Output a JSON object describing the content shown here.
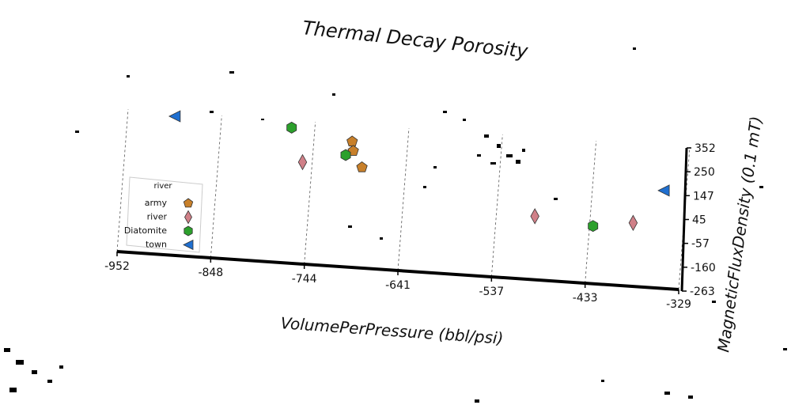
{
  "chart_data": {
    "type": "scatter",
    "title": "Thermal Decay Porosity",
    "xlabel": "VolumePerPressure (bbl/psi)",
    "ylabel": "MagneticFluxDensity (0.1 mT)",
    "xlim": [
      -952,
      -329
    ],
    "ylim": [
      -263,
      352
    ],
    "x_ticks": [
      "-952",
      "-848",
      "-744",
      "-641",
      "-537",
      "-433",
      "-329"
    ],
    "y_ticks": [
      "-263",
      "-160",
      "-57",
      "45",
      "147",
      "250",
      "352"
    ],
    "grid": true,
    "legend": {
      "title": "river",
      "placement": "left",
      "entries": [
        "army",
        "river",
        "Diatomite",
        "town"
      ]
    },
    "series": [
      {
        "name": "army",
        "marker": "pentagon",
        "color": "#c8802a",
        "points": [
          {
            "x": -702,
            "y": 278
          },
          {
            "x": -700,
            "y": 238
          },
          {
            "x": -689,
            "y": 170
          }
        ]
      },
      {
        "name": "river",
        "marker": "diamond",
        "color": "#d08088",
        "points": [
          {
            "x": -755,
            "y": 175
          },
          {
            "x": -494,
            "y": 10
          },
          {
            "x": -385,
            "y": 10
          }
        ]
      },
      {
        "name": "Diatomite",
        "marker": "hexagon",
        "color": "#2ca02c",
        "points": [
          {
            "x": -770,
            "y": 320
          },
          {
            "x": -708,
            "y": 218
          },
          {
            "x": -429,
            "y": -15
          }
        ]
      },
      {
        "name": "town",
        "marker": "triangle-left",
        "color": "#1f6fd0",
        "points": [
          {
            "x": -900,
            "y": 335
          },
          {
            "x": -354,
            "y": 158
          }
        ]
      }
    ]
  }
}
